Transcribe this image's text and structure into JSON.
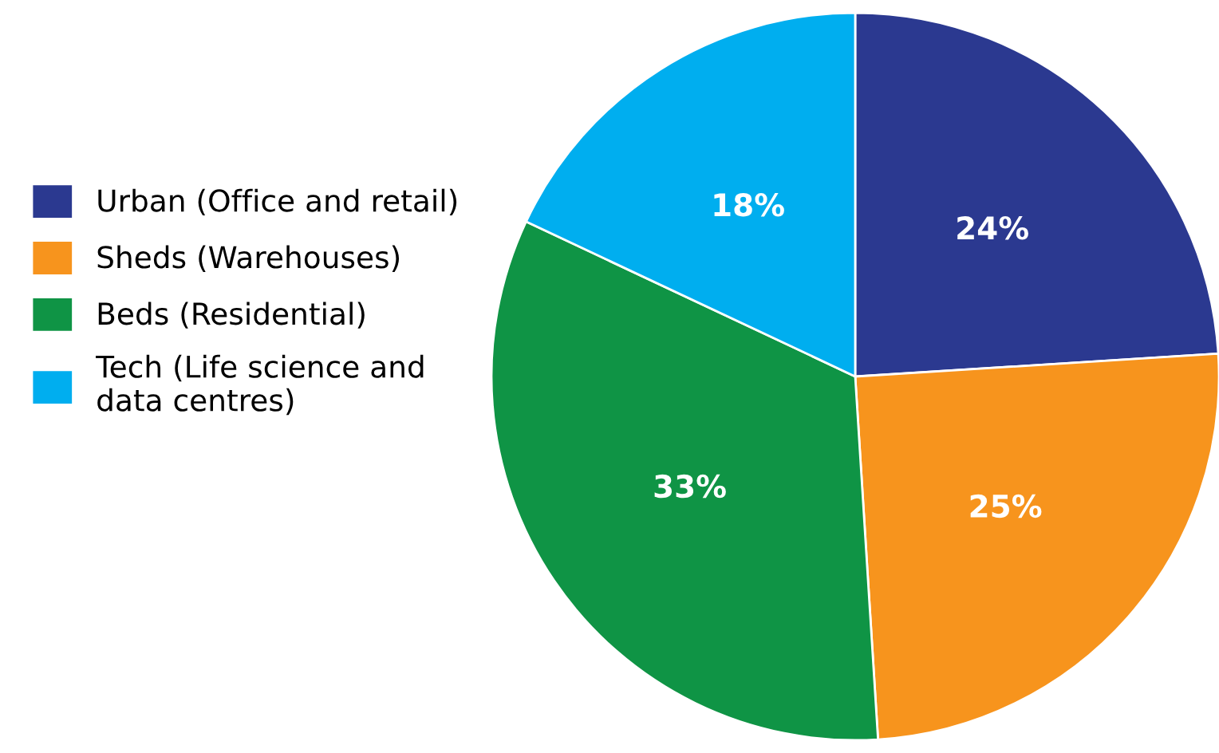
{
  "chart_data": {
    "type": "pie",
    "categories": [
      "Urban (Office and retail)",
      "Sheds (Warehouses)",
      "Beds (Residential)",
      "Tech (Life science and\ndata centres)"
    ],
    "values": [
      24,
      25,
      33,
      18
    ],
    "colors": [
      "#2b3990",
      "#f7941d",
      "#0f9445",
      "#00aeef"
    ],
    "value_labels": [
      "24%",
      "25%",
      "33%",
      "18%"
    ],
    "legend": "left"
  }
}
